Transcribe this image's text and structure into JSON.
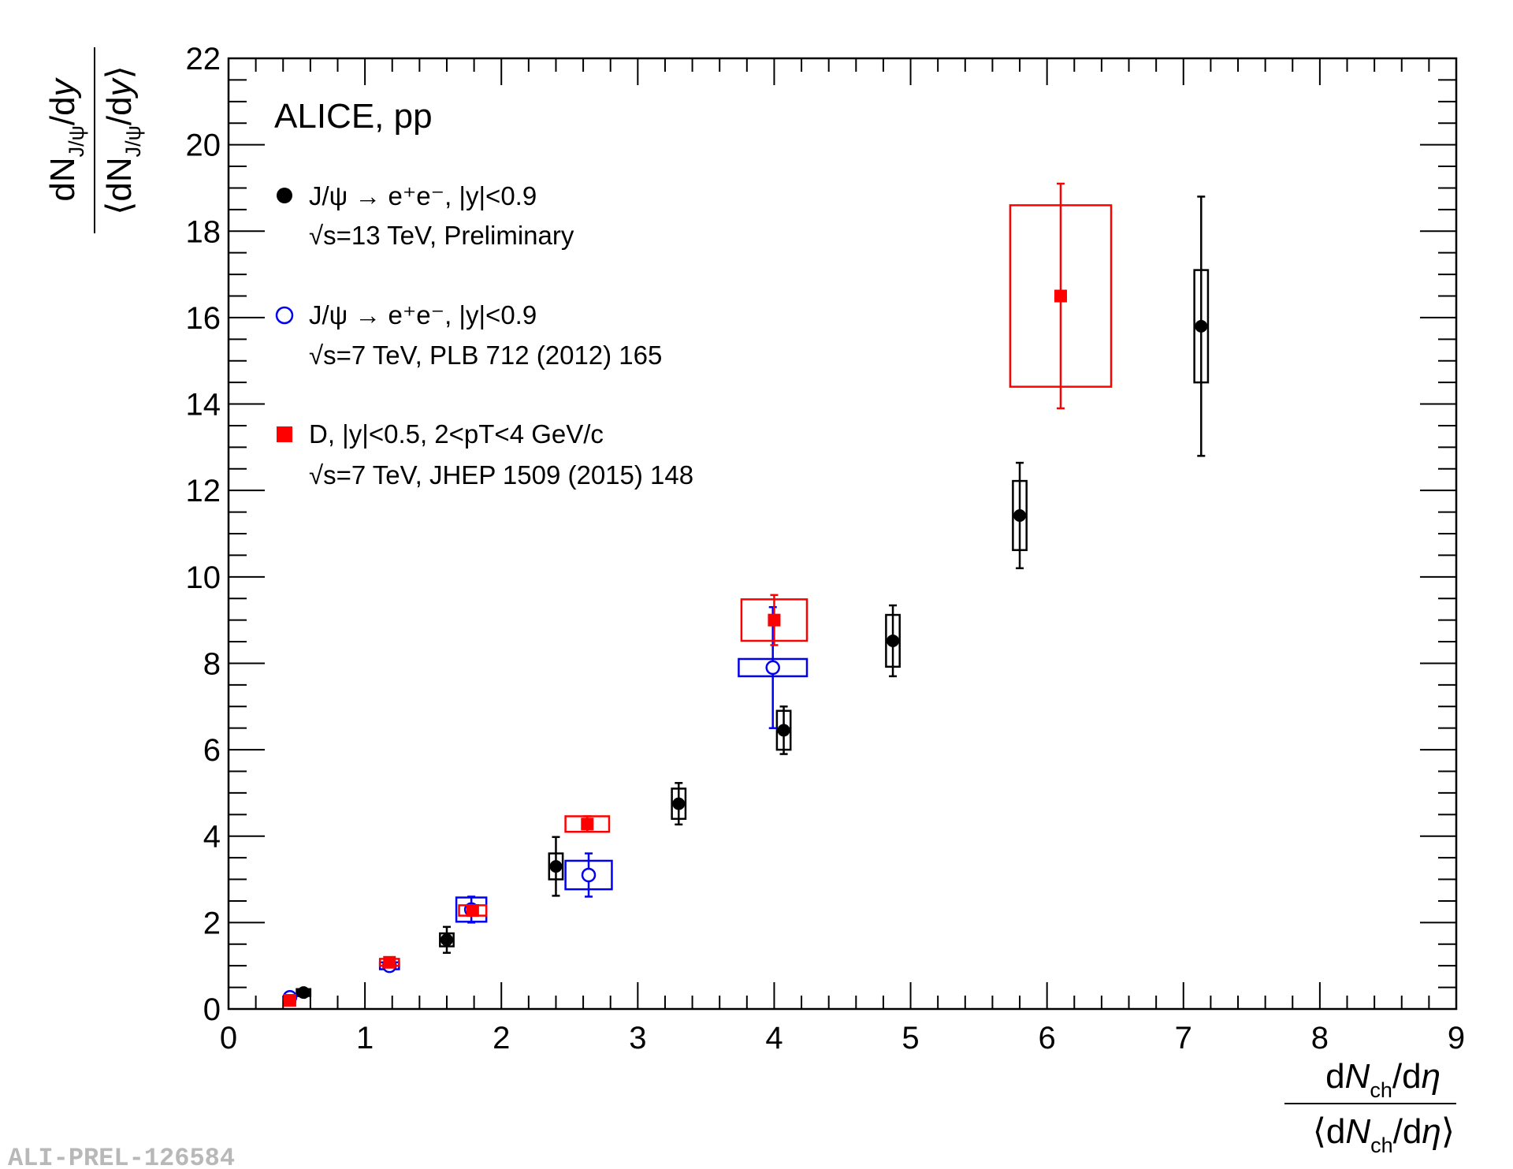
{
  "chart_data": {
    "type": "scatter",
    "xlim": [
      0,
      9
    ],
    "ylim": [
      0,
      22
    ],
    "x_ticks": [
      "0",
      "1",
      "2",
      "3",
      "4",
      "5",
      "6",
      "7",
      "8",
      "9"
    ],
    "y_ticks": [
      "0",
      "2",
      "4",
      "6",
      "8",
      "10",
      "12",
      "14",
      "16",
      "18",
      "20",
      "22"
    ],
    "xlabel": {
      "num_d": "d",
      "num_N": "N",
      "num_sub": "ch",
      "num_rest": "/d",
      "num_eta": "η",
      "den_open": "⟨d",
      "den_N": "N",
      "den_sub": "ch",
      "den_rest": "/d",
      "den_eta": "η",
      "den_close": "⟩"
    },
    "ylabel": {
      "num_d": "dN",
      "num_sub": "J/ψ",
      "num_rest": "/d",
      "num_y": "y",
      "den_open": "⟨dN",
      "den_sub": "J/ψ",
      "den_rest": "/d",
      "den_y": "y",
      "den_close": "⟩"
    },
    "annotation": "ALICE, pp",
    "grid": false,
    "legend_position": "top-left",
    "legend": [
      {
        "line1": "J/ψ → e⁺e⁻, |y|<0.9",
        "line2": "√s=13 TeV, Preliminary"
      },
      {
        "line1": "J/ψ → e⁺e⁻, |y|<0.9",
        "line2": "√s=7 TeV, PLB 712 (2012) 165"
      },
      {
        "line1": "D, |y|<0.5, 2<pT<4 GeV/c",
        "line2": "√s=7 TeV, JHEP 1509 (2015) 148"
      }
    ],
    "series": [
      {
        "color": "#000000",
        "marker": "filled-circle",
        "points": [
          {
            "x": 0.55,
            "y": 0.38,
            "yerr": 0.08,
            "xsys": 0.05,
            "ysys": 0.08
          },
          {
            "x": 1.6,
            "y": 1.6,
            "yerr": 0.3,
            "xsys": 0.05,
            "ysys": 0.15
          },
          {
            "x": 2.4,
            "y": 3.3,
            "yerr": 0.68,
            "xsys": 0.05,
            "ysys": 0.3
          },
          {
            "x": 3.3,
            "y": 4.75,
            "yerr": 0.48,
            "xsys": 0.05,
            "ysys": 0.35
          },
          {
            "x": 4.07,
            "y": 6.45,
            "yerr": 0.55,
            "xsys": 0.05,
            "ysys": 0.45
          },
          {
            "x": 4.87,
            "y": 8.52,
            "yerr": 0.82,
            "xsys": 0.05,
            "ysys": 0.6
          },
          {
            "x": 5.8,
            "y": 11.42,
            "yerr": 1.22,
            "xsys": 0.05,
            "ysys": 0.8
          },
          {
            "x": 7.13,
            "y": 15.8,
            "yerr": 3.0,
            "xsys": 0.05,
            "ysys": 1.3
          }
        ]
      },
      {
        "color": "#0000ee",
        "marker": "open-circle",
        "points": [
          {
            "x": 0.45,
            "y": 0.27,
            "yerr": 0.05,
            "xsys": 0.04,
            "ysys": 0.04
          },
          {
            "x": 1.18,
            "y": 1.0,
            "yerr": 0.08,
            "xsys": 0.07,
            "ysys": 0.08
          },
          {
            "x": 1.78,
            "y": 2.3,
            "yerr": 0.3,
            "xsys": 0.11,
            "ysys": 0.28
          },
          {
            "x": 2.64,
            "y": 3.1,
            "yerr": 0.5,
            "xsys": 0.17,
            "ysys": 0.33
          },
          {
            "x": 3.99,
            "y": 7.9,
            "yerr": 1.4,
            "xsys": 0.25,
            "ysys": 0.2
          }
        ]
      },
      {
        "color": "#ff0000",
        "marker": "filled-square",
        "points": [
          {
            "x": 0.45,
            "y": 0.2,
            "yerr": 0.05,
            "xsys": 0.04,
            "ysys": 0.03
          },
          {
            "x": 1.18,
            "y": 1.08,
            "yerr": 0.08,
            "xsys": 0.07,
            "ysys": 0.08
          },
          {
            "x": 1.79,
            "y": 2.28,
            "yerr": 0.12,
            "xsys": 0.1,
            "ysys": 0.12
          },
          {
            "x": 2.63,
            "y": 4.28,
            "yerr": 0.18,
            "xsys": 0.16,
            "ysys": 0.18
          },
          {
            "x": 4.0,
            "y": 9.0,
            "yerr": 0.58,
            "xsys": 0.24,
            "ysys": 0.48
          },
          {
            "x": 6.1,
            "y": 16.5,
            "yerr": 2.6,
            "xsys": 0.37,
            "ysys": 2.1
          }
        ]
      }
    ]
  },
  "watermark": "ALI-PREL-126584"
}
